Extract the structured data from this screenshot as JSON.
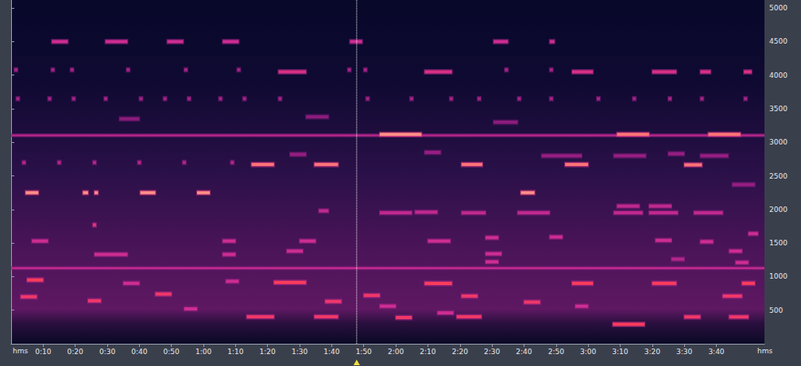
{
  "chart_data": {
    "type": "spectrogram",
    "xlabel": "hms",
    "xlim": [
      0,
      235
    ],
    "xticks": [
      {
        "value": 10,
        "label": "0:10"
      },
      {
        "value": 20,
        "label": "0:20"
      },
      {
        "value": 30,
        "label": "0:30"
      },
      {
        "value": 40,
        "label": "0:40"
      },
      {
        "value": 50,
        "label": "0:50"
      },
      {
        "value": 60,
        "label": "1:00"
      },
      {
        "value": 70,
        "label": "1:10"
      },
      {
        "value": 80,
        "label": "1:20"
      },
      {
        "value": 90,
        "label": "1:30"
      },
      {
        "value": 100,
        "label": "1:40"
      },
      {
        "value": 110,
        "label": "1:50"
      },
      {
        "value": 120,
        "label": "2:00"
      },
      {
        "value": 130,
        "label": "2:10"
      },
      {
        "value": 140,
        "label": "2:20"
      },
      {
        "value": 150,
        "label": "2:30"
      },
      {
        "value": 160,
        "label": "2:40"
      },
      {
        "value": 170,
        "label": "2:50"
      },
      {
        "value": 180,
        "label": "3:00"
      },
      {
        "value": 190,
        "label": "3:10"
      },
      {
        "value": 200,
        "label": "3:20"
      },
      {
        "value": 210,
        "label": "3:30"
      },
      {
        "value": 220,
        "label": "3:40"
      }
    ],
    "ylim": [
      0,
      5120
    ],
    "yticks": [
      500,
      1000,
      1500,
      2000,
      2500,
      3000,
      3500,
      4000,
      4500,
      5000
    ],
    "grid": false,
    "cursor": 107.8,
    "segments": [
      [
        12.7,
        17.7,
        4500,
        0.6
      ],
      [
        29.4,
        36.3,
        4500,
        0.6
      ],
      [
        48.7,
        53.7,
        4500,
        0.6
      ],
      [
        66,
        71,
        4500,
        0.6
      ],
      [
        105.7,
        109.5,
        4500,
        0.6
      ],
      [
        150.5,
        155,
        4500,
        0.6
      ],
      [
        168,
        169.5,
        4500,
        0.6
      ],
      [
        83.4,
        92,
        4050,
        0.65
      ],
      [
        129,
        137.5,
        4050,
        0.65
      ],
      [
        175,
        181.5,
        4050,
        0.65
      ],
      [
        200,
        207.5,
        4050,
        0.65
      ],
      [
        215,
        218.2,
        4050,
        0.65
      ],
      [
        228.6,
        231,
        4050,
        0.65
      ],
      [
        1,
        2,
        4080,
        0.45
      ],
      [
        12.5,
        13.5,
        4080,
        0.45
      ],
      [
        18.5,
        19.5,
        4080,
        0.45
      ],
      [
        36,
        37,
        4080,
        0.45
      ],
      [
        54,
        55,
        4080,
        0.45
      ],
      [
        70.5,
        71.5,
        4080,
        0.45
      ],
      [
        105,
        106,
        4080,
        0.45
      ],
      [
        110,
        111,
        4080,
        0.45
      ],
      [
        154,
        155,
        4080,
        0.45
      ],
      [
        168,
        169,
        4080,
        0.45
      ],
      [
        1.6,
        2.6,
        3650,
        0.45
      ],
      [
        11.5,
        12.5,
        3650,
        0.45
      ],
      [
        19,
        20,
        3650,
        0.45
      ],
      [
        29,
        30,
        3650,
        0.45
      ],
      [
        40,
        41,
        3650,
        0.45
      ],
      [
        47.5,
        48.5,
        3650,
        0.45
      ],
      [
        55,
        56,
        3650,
        0.45
      ],
      [
        64.8,
        65.8,
        3650,
        0.45
      ],
      [
        72.3,
        73.3,
        3650,
        0.45
      ],
      [
        83.4,
        84.4,
        3650,
        0.45
      ],
      [
        110.7,
        111.7,
        3650,
        0.45
      ],
      [
        124.4,
        125.4,
        3650,
        0.45
      ],
      [
        136.8,
        137.8,
        3650,
        0.45
      ],
      [
        145.5,
        146.5,
        3650,
        0.45
      ],
      [
        158,
        159,
        3650,
        0.45
      ],
      [
        168,
        169,
        3650,
        0.45
      ],
      [
        182.7,
        183.7,
        3650,
        0.45
      ],
      [
        193.9,
        194.9,
        3650,
        0.45
      ],
      [
        205,
        206,
        3650,
        0.45
      ],
      [
        215,
        216,
        3650,
        0.45
      ],
      [
        228.6,
        229.6,
        3650,
        0.45
      ],
      [
        33.8,
        40,
        3350,
        0.35
      ],
      [
        92,
        99,
        3380,
        0.35
      ],
      [
        150.5,
        158,
        3300,
        0.35
      ],
      [
        0,
        235,
        3105,
        0.55
      ],
      [
        115,
        128,
        3120,
        0.95
      ],
      [
        189,
        199,
        3120,
        0.9
      ],
      [
        217.5,
        227.5,
        3120,
        0.9
      ],
      [
        87,
        92,
        2820,
        0.4
      ],
      [
        129,
        134,
        2850,
        0.4
      ],
      [
        165.5,
        178,
        2800,
        0.4
      ],
      [
        188,
        198,
        2800,
        0.4
      ],
      [
        205,
        210,
        2830,
        0.4
      ],
      [
        215,
        223.7,
        2800,
        0.4
      ],
      [
        3.5,
        4.5,
        2700,
        0.5
      ],
      [
        14.5,
        15.5,
        2700,
        0.5
      ],
      [
        25.5,
        26.5,
        2700,
        0.5
      ],
      [
        39.5,
        40.5,
        2700,
        0.5
      ],
      [
        53.5,
        54.5,
        2700,
        0.5
      ],
      [
        68.5,
        69.5,
        2700,
        0.5
      ],
      [
        75,
        82,
        2670,
        0.9
      ],
      [
        94.6,
        102,
        2670,
        0.9
      ],
      [
        140.5,
        147,
        2670,
        0.9
      ],
      [
        172.8,
        180,
        2670,
        0.9
      ],
      [
        210,
        215.5,
        2665,
        0.9
      ],
      [
        4.5,
        8.5,
        2250,
        0.95
      ],
      [
        22.4,
        24,
        2250,
        0.95
      ],
      [
        26,
        27.1,
        2250,
        0.95
      ],
      [
        40.3,
        45,
        2250,
        0.95
      ],
      [
        58,
        62,
        2250,
        0.95
      ],
      [
        159,
        163.3,
        2250,
        0.95
      ],
      [
        225,
        232,
        2370,
        0.4
      ],
      [
        115,
        125,
        1950,
        0.55
      ],
      [
        126,
        133,
        1960,
        0.55
      ],
      [
        140.5,
        148,
        1950,
        0.55
      ],
      [
        158,
        168,
        1950,
        0.55
      ],
      [
        188,
        197,
        1950,
        0.55
      ],
      [
        199,
        208,
        1950,
        0.55
      ],
      [
        213,
        222,
        1950,
        0.55
      ],
      [
        96,
        99,
        1980,
        0.55
      ],
      [
        189,
        196,
        2050,
        0.55
      ],
      [
        199,
        206,
        2050,
        0.55
      ],
      [
        25.5,
        26.5,
        1770,
        0.7
      ],
      [
        6.5,
        11.5,
        1530,
        0.6
      ],
      [
        66,
        70,
        1530,
        0.6
      ],
      [
        90,
        95,
        1530,
        0.6
      ],
      [
        130,
        137,
        1530,
        0.6
      ],
      [
        148,
        152,
        1580,
        0.6
      ],
      [
        168,
        172,
        1590,
        0.6
      ],
      [
        201,
        206,
        1540,
        0.6
      ],
      [
        215,
        219,
        1520,
        0.6
      ],
      [
        230,
        233,
        1640,
        0.6
      ],
      [
        26,
        36.3,
        1330,
        0.6
      ],
      [
        66,
        70,
        1330,
        0.6
      ],
      [
        86,
        91,
        1380,
        0.6
      ],
      [
        148,
        153,
        1340,
        0.6
      ],
      [
        224,
        228,
        1380,
        0.6
      ],
      [
        148,
        152,
        1220,
        0.6
      ],
      [
        206,
        210,
        1260,
        0.5
      ],
      [
        226,
        230,
        1210,
        0.6
      ],
      [
        0,
        235,
        1125,
        0.6
      ],
      [
        82,
        92,
        912,
        0.8
      ],
      [
        129,
        137.5,
        900,
        0.8
      ],
      [
        175,
        181.5,
        900,
        0.8
      ],
      [
        200,
        207.5,
        900,
        0.8
      ],
      [
        228,
        232,
        900,
        0.8
      ],
      [
        5,
        10,
        950,
        0.8
      ],
      [
        35,
        40,
        900,
        0.6
      ],
      [
        67,
        71,
        930,
        0.6
      ],
      [
        140.5,
        145.5,
        710,
        0.75
      ],
      [
        222,
        228,
        710,
        0.75
      ],
      [
        3,
        8,
        700,
        0.75
      ],
      [
        24,
        28,
        640,
        0.75
      ],
      [
        45,
        50,
        740,
        0.75
      ],
      [
        98,
        103,
        630,
        0.75
      ],
      [
        160,
        165,
        620,
        0.75
      ],
      [
        110,
        115,
        720,
        0.75
      ],
      [
        73.5,
        82,
        403,
        0.75
      ],
      [
        94.6,
        102,
        403,
        0.75
      ],
      [
        139,
        146.7,
        403,
        0.75
      ],
      [
        210,
        215,
        400,
        0.75
      ],
      [
        224,
        230,
        400,
        0.75
      ],
      [
        120,
        125,
        390,
        0.75
      ],
      [
        187.7,
        197.6,
        290,
        0.8
      ],
      [
        54,
        58,
        520,
        0.6
      ],
      [
        115,
        120,
        560,
        0.6
      ],
      [
        133,
        138,
        460,
        0.6
      ],
      [
        176,
        180,
        560,
        0.6
      ]
    ]
  }
}
